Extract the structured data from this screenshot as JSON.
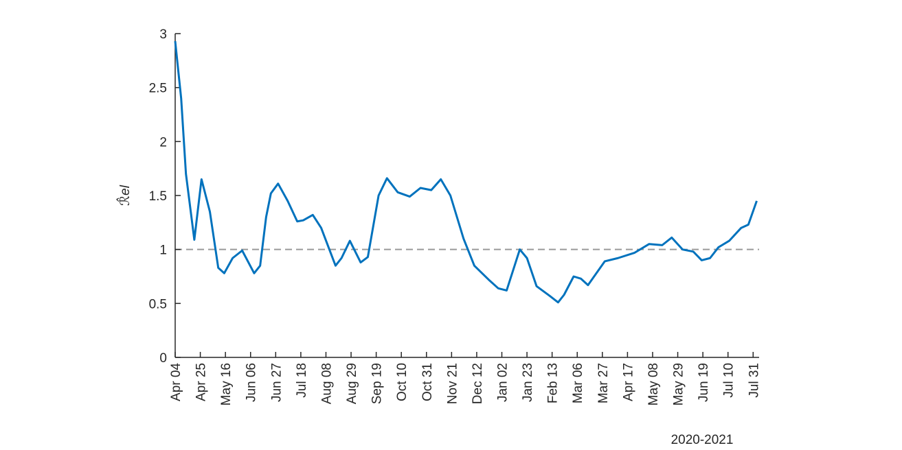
{
  "chart_data": {
    "type": "line",
    "ylabel": "ℛ̂el",
    "xlabel": "2020-2021",
    "x": [
      0,
      5,
      9,
      16,
      22,
      29,
      36,
      41,
      48,
      56,
      66,
      71,
      76,
      80,
      86,
      94,
      102,
      107,
      115,
      122,
      134,
      139,
      146,
      155,
      161,
      170,
      177,
      186,
      196,
      205,
      214,
      222,
      230,
      241,
      250,
      262,
      270,
      277,
      288,
      294,
      302,
      313,
      320,
      325,
      333,
      339,
      345,
      359,
      370,
      384,
      396,
      407,
      415,
      424,
      433,
      440,
      447,
      454,
      463,
      473,
      479,
      486
    ],
    "series": [
      {
        "name": "R",
        "color": "#0072bd",
        "values": [
          2.93,
          2.4,
          1.7,
          1.09,
          1.65,
          1.35,
          0.83,
          0.78,
          0.92,
          0.99,
          0.78,
          0.85,
          1.3,
          1.52,
          1.61,
          1.45,
          1.26,
          1.27,
          1.32,
          1.2,
          0.85,
          0.92,
          1.08,
          0.88,
          0.93,
          1.5,
          1.66,
          1.53,
          1.49,
          1.57,
          1.55,
          1.65,
          1.5,
          1.1,
          0.85,
          0.72,
          0.64,
          0.62,
          1.0,
          0.92,
          0.66,
          0.57,
          0.51,
          0.58,
          0.75,
          0.73,
          0.67,
          0.89,
          0.92,
          0.97,
          1.05,
          1.04,
          1.11,
          1.0,
          0.98,
          0.9,
          0.92,
          1.02,
          1.08,
          1.2,
          1.23,
          1.45
        ]
      }
    ],
    "reference_line": {
      "y": 1,
      "color": "#999999",
      "dashed": true
    },
    "xlim": [
      0,
      488
    ],
    "xticks": [
      {
        "value": 0,
        "label": "Apr 04"
      },
      {
        "value": 21,
        "label": "Apr 25"
      },
      {
        "value": 42,
        "label": "May 16"
      },
      {
        "value": 63,
        "label": "Jun 06"
      },
      {
        "value": 84,
        "label": "Jun 27"
      },
      {
        "value": 105,
        "label": "Jul 18"
      },
      {
        "value": 126,
        "label": "Aug 08"
      },
      {
        "value": 147,
        "label": "Aug 29"
      },
      {
        "value": 168,
        "label": "Sep 19"
      },
      {
        "value": 189,
        "label": "Oct 10"
      },
      {
        "value": 210,
        "label": "Oct 31"
      },
      {
        "value": 231,
        "label": "Nov 21"
      },
      {
        "value": 252,
        "label": "Dec 12"
      },
      {
        "value": 273,
        "label": "Jan 02"
      },
      {
        "value": 294,
        "label": "Jan 23"
      },
      {
        "value": 315,
        "label": "Feb 13"
      },
      {
        "value": 336,
        "label": "Mar 06"
      },
      {
        "value": 357,
        "label": "Mar 27"
      },
      {
        "value": 378,
        "label": "Apr 17"
      },
      {
        "value": 399,
        "label": "May 08"
      },
      {
        "value": 420,
        "label": "May 29"
      },
      {
        "value": 441,
        "label": "Jun 19"
      },
      {
        "value": 462,
        "label": "Jul 10"
      },
      {
        "value": 483,
        "label": "Jul 31"
      }
    ],
    "ylim": [
      0,
      3
    ],
    "yticks": [
      0,
      0.5,
      1,
      1.5,
      2,
      2.5,
      3
    ]
  }
}
